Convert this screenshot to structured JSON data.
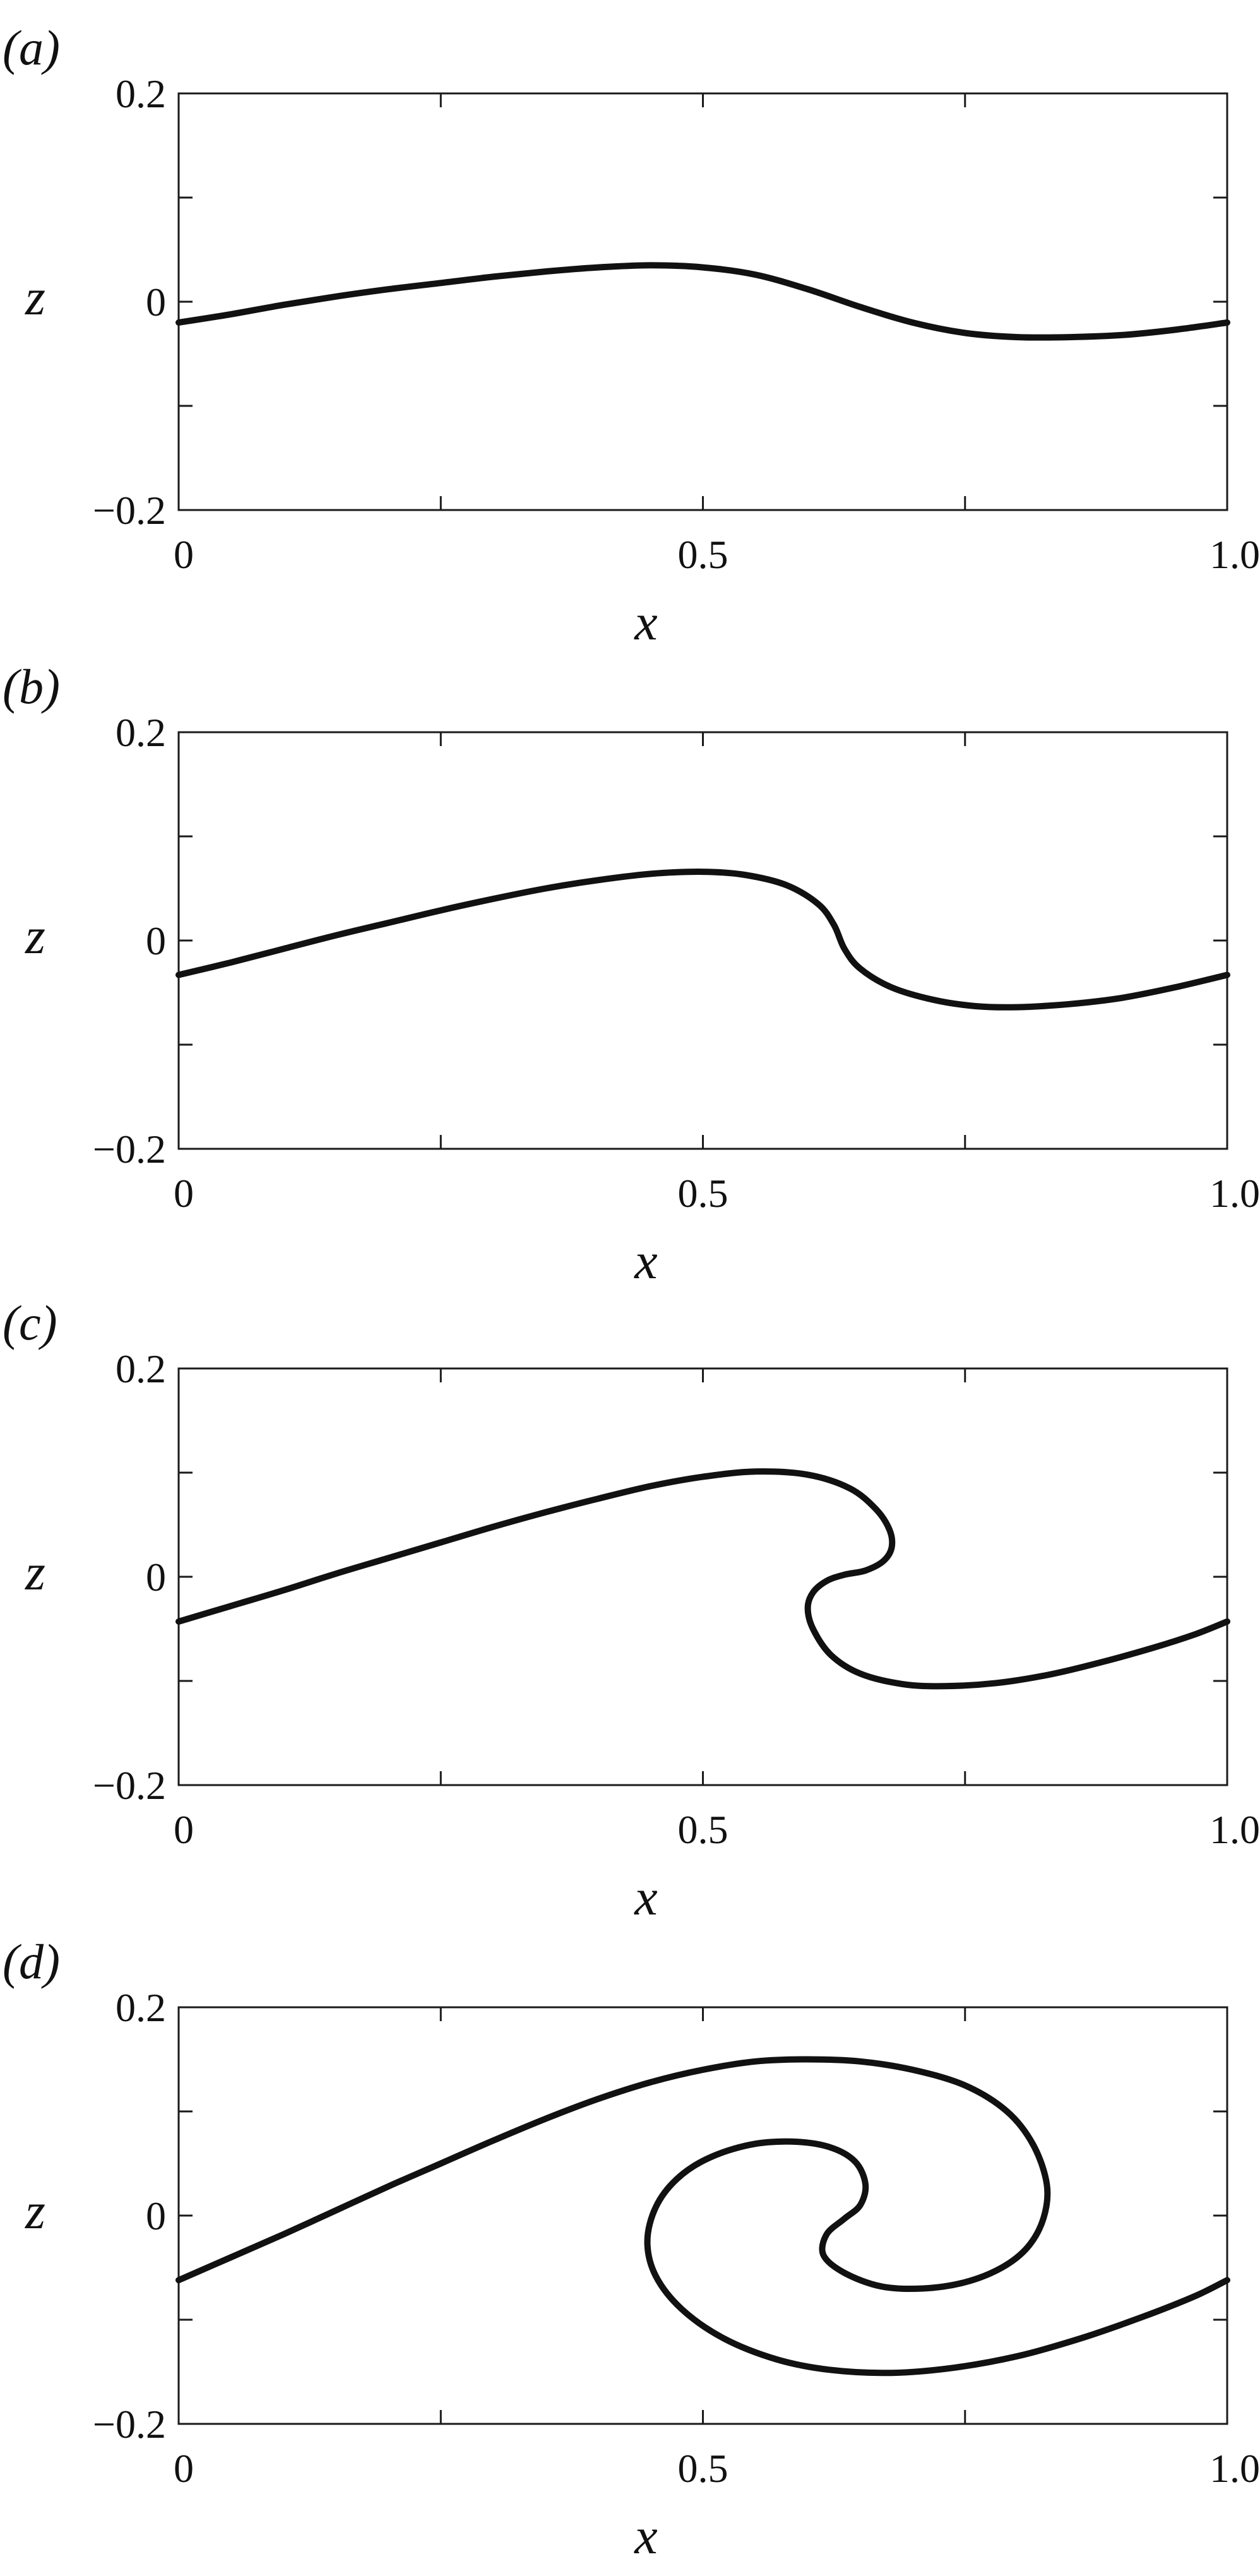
{
  "chart_data": [
    {
      "type": "line",
      "panel_label": "(a)",
      "title": "",
      "xlabel": "x",
      "ylabel": "z",
      "xlim": [
        0,
        1.0
      ],
      "ylim": [
        -0.2,
        0.2
      ],
      "x_ticks": [
        "0",
        "0.5",
        "1.0"
      ],
      "y_ticks": [
        "0.2",
        "0",
        "−0.2"
      ],
      "grid": false,
      "series": [
        {
          "color": "#111111",
          "points": [
            [
              0.0,
              -0.02
            ],
            [
              0.05,
              -0.012
            ],
            [
              0.1,
              -0.003
            ],
            [
              0.15,
              0.005
            ],
            [
              0.2,
              0.012
            ],
            [
              0.25,
              0.018
            ],
            [
              0.3,
              0.024
            ],
            [
              0.35,
              0.029
            ],
            [
              0.4,
              0.033
            ],
            [
              0.45,
              0.035
            ],
            [
              0.5,
              0.033
            ],
            [
              0.55,
              0.026
            ],
            [
              0.6,
              0.012
            ],
            [
              0.65,
              -0.005
            ],
            [
              0.7,
              -0.02
            ],
            [
              0.75,
              -0.03
            ],
            [
              0.8,
              -0.034
            ],
            [
              0.85,
              -0.034
            ],
            [
              0.9,
              -0.032
            ],
            [
              0.95,
              -0.027
            ],
            [
              1.0,
              -0.02
            ]
          ]
        }
      ]
    },
    {
      "type": "line",
      "panel_label": "(b)",
      "title": "",
      "xlabel": "x",
      "ylabel": "z",
      "xlim": [
        0,
        1.0
      ],
      "ylim": [
        -0.2,
        0.2
      ],
      "x_ticks": [
        "0",
        "0.5",
        "1.0"
      ],
      "y_ticks": [
        "0.2",
        "0",
        "−0.2"
      ],
      "grid": false,
      "series": [
        {
          "color": "#111111",
          "points": [
            [
              0.0,
              -0.033
            ],
            [
              0.05,
              -0.021
            ],
            [
              0.1,
              -0.008
            ],
            [
              0.15,
              0.005
            ],
            [
              0.2,
              0.017
            ],
            [
              0.25,
              0.029
            ],
            [
              0.3,
              0.04
            ],
            [
              0.35,
              0.05
            ],
            [
              0.4,
              0.058
            ],
            [
              0.45,
              0.064
            ],
            [
              0.5,
              0.066
            ],
            [
              0.54,
              0.063
            ],
            [
              0.58,
              0.053
            ],
            [
              0.61,
              0.035
            ],
            [
              0.625,
              0.015
            ],
            [
              0.635,
              -0.008
            ],
            [
              0.65,
              -0.027
            ],
            [
              0.68,
              -0.045
            ],
            [
              0.72,
              -0.057
            ],
            [
              0.76,
              -0.063
            ],
            [
              0.8,
              -0.064
            ],
            [
              0.85,
              -0.061
            ],
            [
              0.9,
              -0.055
            ],
            [
              0.95,
              -0.045
            ],
            [
              1.0,
              -0.033
            ]
          ]
        }
      ]
    },
    {
      "type": "line",
      "panel_label": "(c)",
      "title": "",
      "xlabel": "x",
      "ylabel": "z",
      "xlim": [
        0,
        1.0
      ],
      "ylim": [
        -0.2,
        0.2
      ],
      "x_ticks": [
        "0",
        "0.5",
        "1.0"
      ],
      "y_ticks": [
        "0.2",
        "0",
        "−0.2"
      ],
      "grid": false,
      "series": [
        {
          "color": "#111111",
          "points": [
            [
              0.0,
              -0.043
            ],
            [
              0.05,
              -0.028
            ],
            [
              0.1,
              -0.013
            ],
            [
              0.15,
              0.003
            ],
            [
              0.2,
              0.018
            ],
            [
              0.25,
              0.033
            ],
            [
              0.3,
              0.048
            ],
            [
              0.35,
              0.062
            ],
            [
              0.4,
              0.075
            ],
            [
              0.45,
              0.087
            ],
            [
              0.5,
              0.096
            ],
            [
              0.55,
              0.101
            ],
            [
              0.6,
              0.098
            ],
            [
              0.64,
              0.085
            ],
            [
              0.665,
              0.065
            ],
            [
              0.678,
              0.045
            ],
            [
              0.68,
              0.028
            ],
            [
              0.672,
              0.015
            ],
            [
              0.655,
              0.006
            ],
            [
              0.635,
              0.002
            ],
            [
              0.618,
              -0.004
            ],
            [
              0.605,
              -0.015
            ],
            [
              0.6,
              -0.03
            ],
            [
              0.605,
              -0.05
            ],
            [
              0.622,
              -0.075
            ],
            [
              0.65,
              -0.093
            ],
            [
              0.69,
              -0.103
            ],
            [
              0.73,
              -0.105
            ],
            [
              0.78,
              -0.102
            ],
            [
              0.83,
              -0.094
            ],
            [
              0.88,
              -0.082
            ],
            [
              0.93,
              -0.068
            ],
            [
              0.97,
              -0.055
            ],
            [
              1.0,
              -0.043
            ]
          ]
        }
      ]
    },
    {
      "type": "line",
      "panel_label": "(d)",
      "title": "",
      "xlabel": "x",
      "ylabel": "z",
      "xlim": [
        0,
        1.0
      ],
      "ylim": [
        -0.2,
        0.2
      ],
      "x_ticks": [
        "0",
        "0.5",
        "1.0"
      ],
      "y_ticks": [
        "0.2",
        "0",
        "−0.2"
      ],
      "grid": false,
      "series": [
        {
          "color": "#111111",
          "points": [
            [
              0.0,
              -0.062
            ],
            [
              0.05,
              -0.04
            ],
            [
              0.1,
              -0.018
            ],
            [
              0.15,
              0.005
            ],
            [
              0.2,
              0.028
            ],
            [
              0.25,
              0.05
            ],
            [
              0.3,
              0.072
            ],
            [
              0.35,
              0.093
            ],
            [
              0.4,
              0.112
            ],
            [
              0.45,
              0.128
            ],
            [
              0.5,
              0.14
            ],
            [
              0.55,
              0.148
            ],
            [
              0.6,
              0.15
            ],
            [
              0.65,
              0.148
            ],
            [
              0.7,
              0.14
            ],
            [
              0.75,
              0.125
            ],
            [
              0.79,
              0.1
            ],
            [
              0.815,
              0.068
            ],
            [
              0.828,
              0.03
            ],
            [
              0.825,
              -0.002
            ],
            [
              0.81,
              -0.03
            ],
            [
              0.785,
              -0.05
            ],
            [
              0.75,
              -0.064
            ],
            [
              0.71,
              -0.07
            ],
            [
              0.67,
              -0.068
            ],
            [
              0.635,
              -0.055
            ],
            [
              0.615,
              -0.038
            ],
            [
              0.618,
              -0.018
            ],
            [
              0.635,
              -0.003
            ],
            [
              0.65,
              0.01
            ],
            [
              0.655,
              0.03
            ],
            [
              0.645,
              0.052
            ],
            [
              0.62,
              0.066
            ],
            [
              0.585,
              0.071
            ],
            [
              0.545,
              0.068
            ],
            [
              0.505,
              0.055
            ],
            [
              0.475,
              0.035
            ],
            [
              0.455,
              0.008
            ],
            [
              0.447,
              -0.025
            ],
            [
              0.455,
              -0.058
            ],
            [
              0.48,
              -0.09
            ],
            [
              0.52,
              -0.118
            ],
            [
              0.57,
              -0.138
            ],
            [
              0.62,
              -0.148
            ],
            [
              0.68,
              -0.151
            ],
            [
              0.74,
              -0.146
            ],
            [
              0.8,
              -0.135
            ],
            [
              0.86,
              -0.118
            ],
            [
              0.92,
              -0.097
            ],
            [
              0.97,
              -0.077
            ],
            [
              1.0,
              -0.062
            ]
          ]
        }
      ]
    }
  ]
}
